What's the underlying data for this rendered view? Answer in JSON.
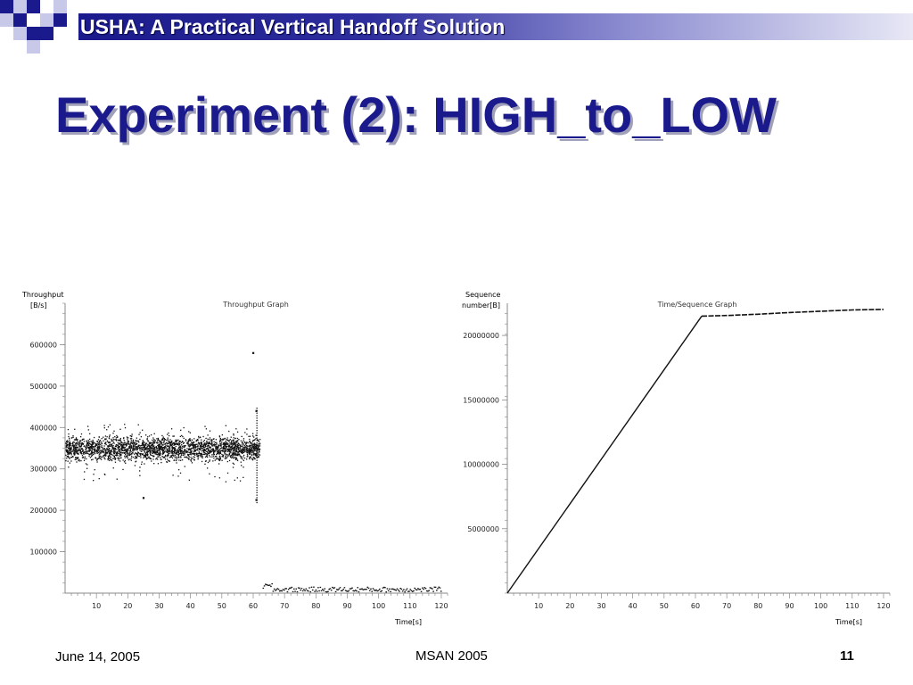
{
  "slide": {
    "header": "USHA: A Practical Vertical Handoff Solution",
    "title": "Experiment (2): HIGH_to_LOW",
    "footer_date": "June 14, 2005",
    "footer_center": "MSAN 2005",
    "page_number": "11",
    "colors": {
      "banner": "#1a1a8c",
      "title": "#1a1a8c",
      "plot": "#111111"
    }
  },
  "chart_data": [
    {
      "type": "scatter",
      "title": "Throughput Graph",
      "ylabel_line1": "Throughput",
      "ylabel_line2": "[B/s]",
      "xlabel": "Time[s]",
      "xlim": [
        0,
        122
      ],
      "ylim": [
        0,
        700000
      ],
      "xticks": [
        "10",
        "20",
        "30",
        "40",
        "50",
        "60",
        "70",
        "80",
        "90",
        "100",
        "110",
        "120"
      ],
      "yticks": [
        "100000",
        "200000",
        "300000",
        "400000",
        "500000",
        "600000"
      ],
      "segments": [
        {
          "x_start": 0,
          "x_end": 62,
          "mean": 350000,
          "spread_low": 270000,
          "spread_high": 410000,
          "outliers": [
            [
              25,
              230000
            ],
            [
              60,
              580000
            ],
            [
              61,
              440000
            ],
            [
              61,
              225000
            ]
          ]
        },
        {
          "x_start": 63,
          "x_end": 120,
          "mean": 10000,
          "spread_low": 3000,
          "spread_high": 20000
        }
      ],
      "grid": false
    },
    {
      "type": "line",
      "title": "Time/Sequence Graph",
      "ylabel_line1": "Sequence",
      "ylabel_line2": "number[B]",
      "xlabel": "Time[s]",
      "xlim": [
        0,
        122
      ],
      "ylim": [
        0,
        22500000
      ],
      "xticks": [
        "10",
        "20",
        "30",
        "40",
        "50",
        "60",
        "70",
        "80",
        "90",
        "100",
        "110",
        "120"
      ],
      "yticks": [
        "5000000",
        "10000000",
        "15000000",
        "20000000"
      ],
      "x": [
        0,
        62,
        70,
        80,
        90,
        100,
        110,
        120
      ],
      "y": [
        0,
        21500000,
        21550000,
        21650000,
        21780000,
        21880000,
        21980000,
        22020000
      ],
      "grid": false
    }
  ]
}
